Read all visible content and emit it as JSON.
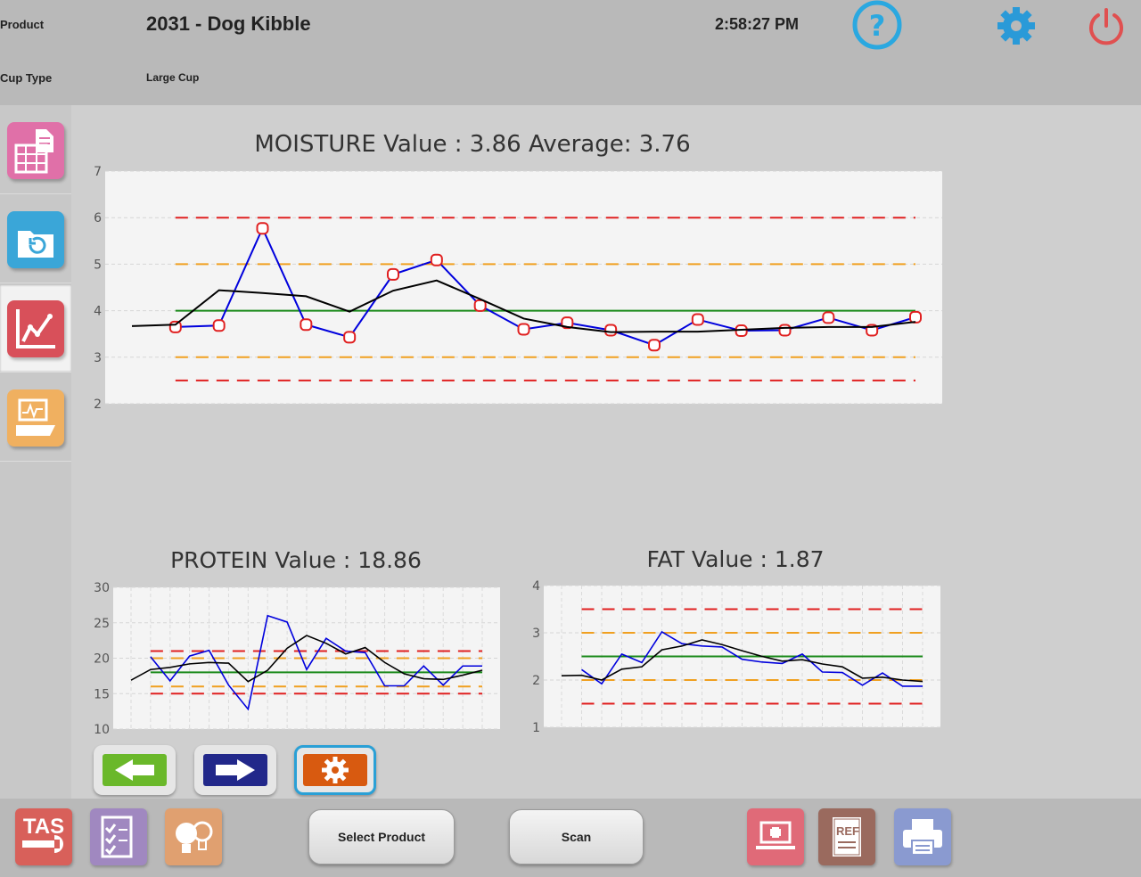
{
  "header": {
    "product_label": "Product",
    "product_value": "2031 -  Dog Kibble",
    "time": "2:58:27 PM",
    "cup_type_label": "Cup Type",
    "cup_type_value": "Large Cup",
    "help_icon": "help-icon",
    "settings_icon": "gear-icon",
    "power_icon": "power-icon"
  },
  "sidebar": {
    "items": [
      {
        "name": "report-icon",
        "color": "#e070a8"
      },
      {
        "name": "history-folder-icon",
        "color": "#3aa6d8"
      },
      {
        "name": "trend-chart-icon",
        "color": "#d8505a"
      },
      {
        "name": "scanner-monitor-icon",
        "color": "#f0b060"
      }
    ]
  },
  "nav": {
    "back_icon": "arrow-left-icon",
    "forward_icon": "arrow-right-icon",
    "settings_icon": "gear-icon"
  },
  "footer": {
    "select_product": "Select Product",
    "scan": "Scan",
    "tas_logo_text": "TAS",
    "ref_text": "REF",
    "icons": [
      "tas-icon",
      "checklist-icon",
      "lightbulb-icon",
      "laptop-medical-icon",
      "ref-book-icon",
      "printer-icon"
    ]
  },
  "colors": {
    "value_line": "#0000dd",
    "average_line": "#000000",
    "target_line": "#1a8a1a",
    "warning_limit": "#f0a020",
    "control_limit": "#e02020",
    "marker": "#e02020"
  },
  "chart_data": [
    {
      "type": "line",
      "title": "MOISTURE Value : 3.86 Average: 3.76",
      "ylim": [
        2,
        7
      ],
      "yticks": [
        2,
        3,
        4,
        5,
        6,
        7
      ],
      "grid": true,
      "x": [
        1,
        2,
        3,
        4,
        5,
        6,
        7,
        8,
        9,
        10,
        11,
        12,
        13,
        14,
        15,
        16,
        17,
        18,
        19
      ],
      "series": [
        {
          "role": "value",
          "values": [
            3.65,
            3.68,
            5.77,
            3.7,
            3.43,
            4.78,
            5.09,
            4.11,
            3.6,
            3.74,
            3.58,
            3.26,
            3.81,
            3.57,
            3.58,
            3.85,
            3.58,
            3.86
          ],
          "x": [
            2,
            3,
            4,
            5,
            6,
            7,
            8,
            9,
            10,
            11,
            12,
            13,
            14,
            15,
            16,
            17,
            18,
            19
          ],
          "markers": true
        },
        {
          "role": "average",
          "x": [
            1,
            2,
            3,
            4,
            5,
            6,
            7,
            8,
            9,
            10,
            11,
            12,
            13,
            14,
            15,
            16,
            17,
            18,
            19
          ],
          "values": [
            3.67,
            3.7,
            4.44,
            4.38,
            4.31,
            3.98,
            4.43,
            4.65,
            4.25,
            3.83,
            3.65,
            3.54,
            3.55,
            3.55,
            3.59,
            3.63,
            3.65,
            3.65,
            3.76
          ]
        }
      ],
      "target": 4.0,
      "warning_limits": [
        3.0,
        5.0
      ],
      "control_limits": [
        2.5,
        6.0
      ],
      "limit_x_range": [
        2,
        19
      ]
    },
    {
      "type": "line",
      "title": "PROTEIN Value : 18.86",
      "ylim": [
        10,
        30
      ],
      "yticks": [
        10,
        15,
        20,
        25,
        30
      ],
      "grid": true,
      "x": [
        1,
        2,
        3,
        4,
        5,
        6,
        7,
        8,
        9,
        10,
        11,
        12,
        13,
        14,
        15,
        16,
        17,
        18,
        19
      ],
      "series": [
        {
          "role": "value",
          "x": [
            2,
            3,
            4,
            5,
            6,
            7,
            8,
            9,
            10,
            11,
            12,
            13,
            14,
            15,
            16,
            17,
            18,
            19
          ],
          "values": [
            20.2,
            16.8,
            20.3,
            21.1,
            16.2,
            12.8,
            26.0,
            25.1,
            18.4,
            22.8,
            21.0,
            20.8,
            16.1,
            16.1,
            18.9,
            16.2,
            18.9,
            18.9
          ]
        },
        {
          "role": "average",
          "x": [
            1,
            2,
            3,
            4,
            5,
            6,
            7,
            8,
            9,
            10,
            11,
            12,
            13,
            14,
            15,
            16,
            17,
            18,
            19
          ],
          "values": [
            16.9,
            18.4,
            18.7,
            19.2,
            19.4,
            19.3,
            16.7,
            18.3,
            21.4,
            23.2,
            22.1,
            20.6,
            21.5,
            19.4,
            17.8,
            17.1,
            17.0,
            17.6,
            18.3
          ]
        }
      ],
      "target": 18.0,
      "warning_limits": [
        16.0,
        20.0
      ],
      "control_limits": [
        15.0,
        21.0
      ],
      "limit_x_range": [
        2,
        19
      ]
    },
    {
      "type": "line",
      "title": "FAT Value : 1.87",
      "ylim": [
        1,
        4
      ],
      "yticks": [
        1,
        2,
        3,
        4
      ],
      "grid": true,
      "x": [
        1,
        2,
        3,
        4,
        5,
        6,
        7,
        8,
        9,
        10,
        11,
        12,
        13,
        14,
        15,
        16,
        17,
        18,
        19
      ],
      "series": [
        {
          "role": "value",
          "x": [
            2,
            3,
            4,
            5,
            6,
            7,
            8,
            9,
            10,
            11,
            12,
            13,
            14,
            15,
            16,
            17,
            18,
            19
          ],
          "values": [
            2.22,
            1.92,
            2.55,
            2.37,
            3.02,
            2.77,
            2.72,
            2.7,
            2.44,
            2.38,
            2.35,
            2.55,
            2.17,
            2.16,
            1.89,
            2.15,
            1.87,
            1.87
          ]
        },
        {
          "role": "average",
          "x": [
            1,
            2,
            3,
            4,
            5,
            6,
            7,
            8,
            9,
            10,
            11,
            12,
            13,
            14,
            15,
            16,
            17,
            18,
            19
          ],
          "values": [
            2.09,
            2.1,
            2.0,
            2.23,
            2.28,
            2.64,
            2.72,
            2.85,
            2.75,
            2.62,
            2.5,
            2.4,
            2.43,
            2.34,
            2.28,
            2.04,
            2.06,
            2.0,
            1.97
          ]
        }
      ],
      "target": 2.5,
      "warning_limits": [
        2.0,
        3.0
      ],
      "control_limits": [
        1.5,
        3.5
      ],
      "limit_x_range": [
        2,
        19
      ]
    }
  ]
}
